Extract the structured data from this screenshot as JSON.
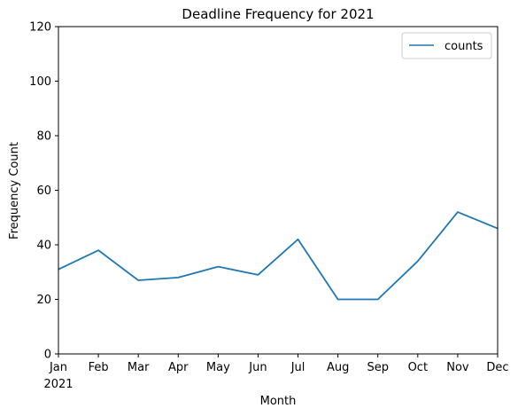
{
  "chart_data": {
    "type": "line",
    "title": "Deadline Frequency for 2021",
    "xlabel": "Month",
    "ylabel": "Frequency Count",
    "categories": [
      "Jan",
      "Feb",
      "Mar",
      "Apr",
      "May",
      "Jun",
      "Jul",
      "Aug",
      "Sep",
      "Oct",
      "Nov",
      "Dec"
    ],
    "year_label": "2021",
    "series": [
      {
        "name": "counts",
        "color": "#1f77b4",
        "values": [
          31,
          38,
          27,
          28,
          32,
          29,
          42,
          20,
          20,
          34,
          52,
          46
        ]
      }
    ],
    "ylim": [
      0,
      120
    ],
    "yticks": [
      0,
      20,
      40,
      60,
      80,
      100,
      120
    ],
    "grid": false,
    "legend": "top-right"
  }
}
